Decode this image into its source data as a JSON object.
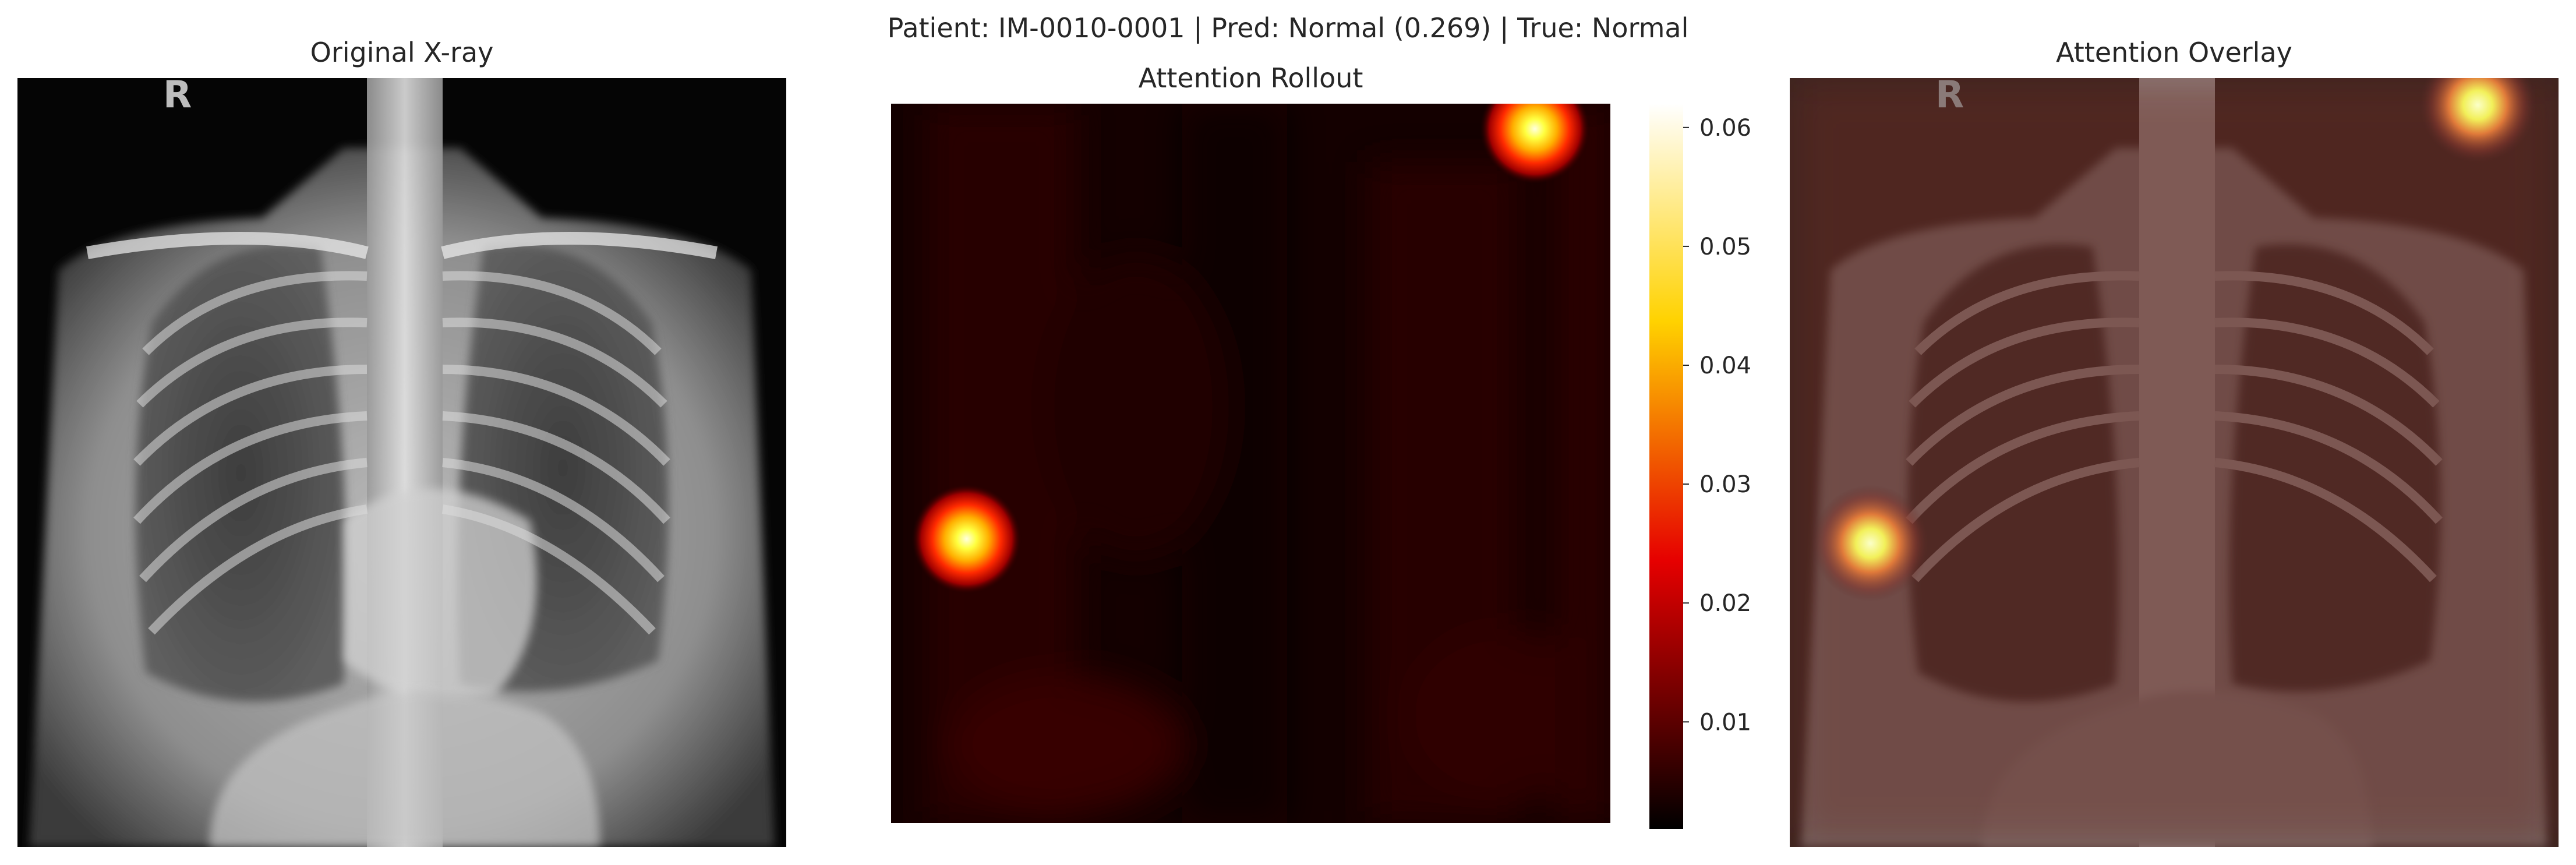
{
  "figure": {
    "suptitle": "Patient: IM-0010-0001 | Pred: Normal (0.269) | True: Normal"
  },
  "panels": {
    "xray_title": "Original X-ray",
    "xray_marker": "R",
    "rollout_title": "Attention Rollout",
    "overlay_title": "Attention Overlay"
  },
  "chart_data": [
    {
      "type": "image",
      "title": "Original X-ray",
      "content": "chest x-ray, grayscale"
    },
    {
      "type": "heatmap",
      "title": "Attention Rollout",
      "colormap": "hot",
      "vmin": 0.001,
      "vmax": 0.062,
      "colorbar_ticks": [
        0.01,
        0.02,
        0.03,
        0.04,
        0.05,
        0.06
      ],
      "colorbar_tick_labels": [
        "0.01",
        "0.02",
        "0.03",
        "0.04",
        "0.05",
        "0.06"
      ],
      "hotspots": [
        {
          "x": 0.895,
          "y": 0.035,
          "value": 0.06
        },
        {
          "x": 0.105,
          "y": 0.605,
          "value": 0.055
        }
      ],
      "background_value": 0.004
    },
    {
      "type": "image",
      "title": "Attention Overlay",
      "content": "x-ray with attention heatmap overlay"
    }
  ]
}
